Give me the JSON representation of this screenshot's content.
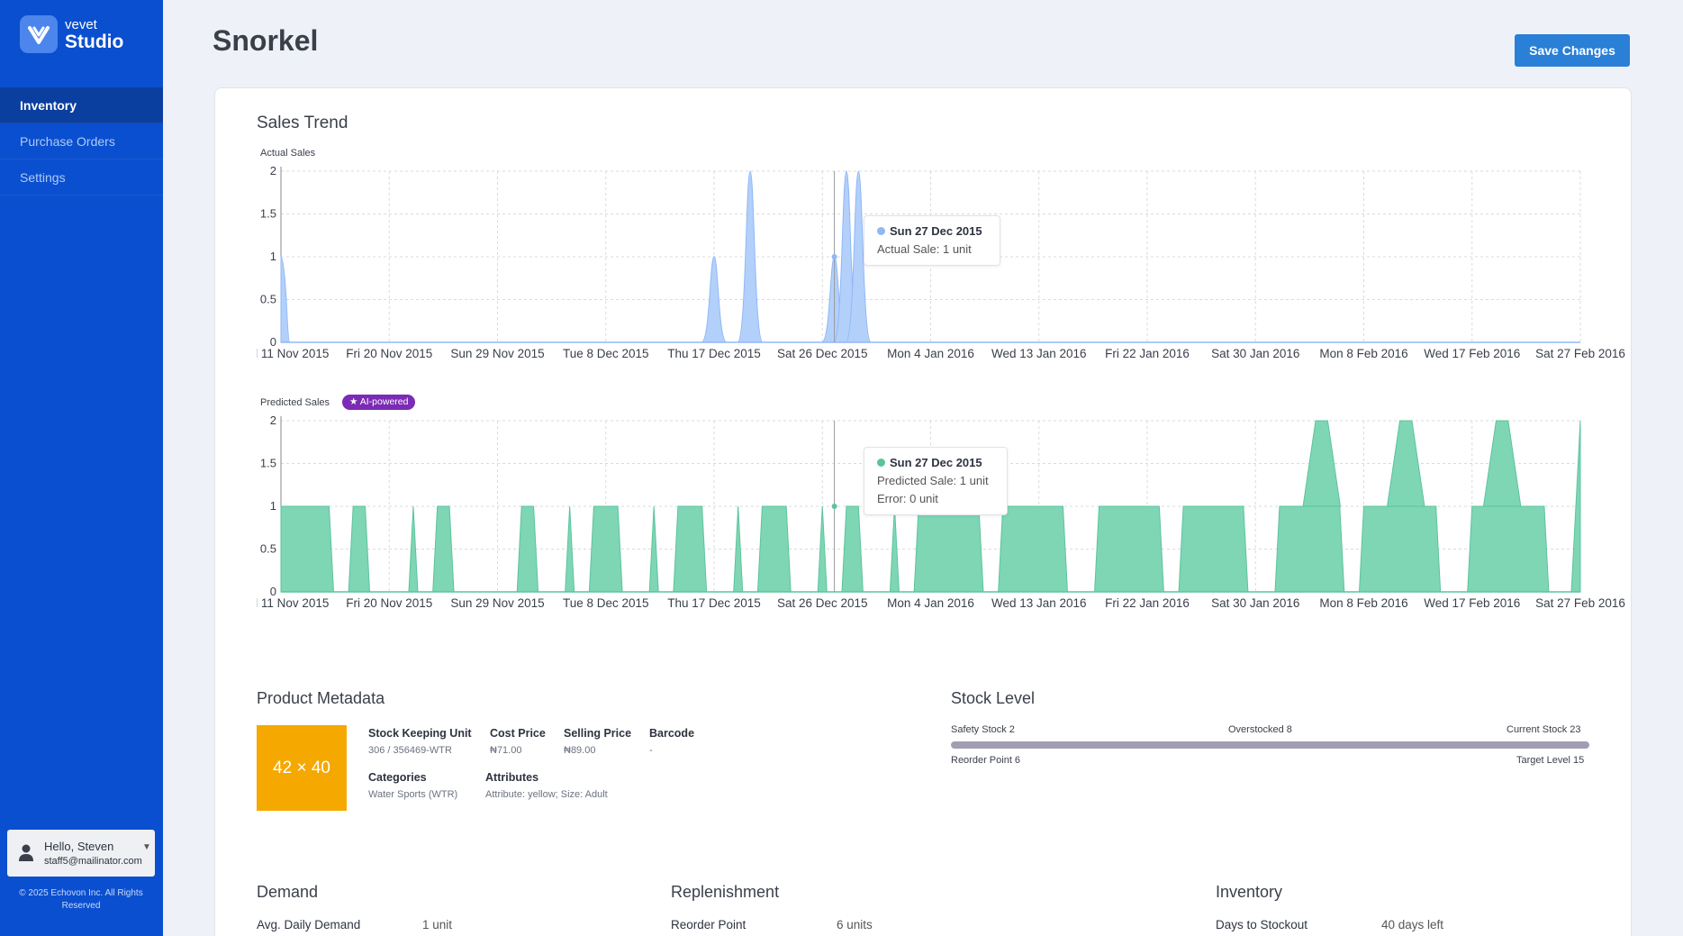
{
  "brand": {
    "name_small": "vevet",
    "name_big": "Studio"
  },
  "nav": [
    {
      "label": "Inventory",
      "active": true
    },
    {
      "label": "Purchase Orders",
      "active": false
    },
    {
      "label": "Settings",
      "active": false
    }
  ],
  "user": {
    "greeting": "Hello, Steven",
    "email": "staff5@mailinator.com"
  },
  "copyright": "© 2025 Echovon Inc. All Rights Reserved",
  "page": {
    "title": "Snorkel",
    "save_label": "Save Changes"
  },
  "sales_trend": {
    "title": "Sales Trend",
    "actual_label": "Actual Sales",
    "predicted_label": "Predicted Sales",
    "ai_badge": "AI-powered",
    "tooltip_actual": {
      "title": "Sun 27 Dec 2015",
      "line1": "Actual Sale: 1 unit"
    },
    "tooltip_predicted": {
      "title": "Sun 27 Dec 2015",
      "line1": "Predicted Sale: 1 unit",
      "line2": "Error: 0 unit"
    }
  },
  "chart_data": [
    {
      "type": "area",
      "title": "Actual Sales",
      "x_range": [
        "2015-11-11",
        "2016-02-27"
      ],
      "x_ticks": [
        "Wed 11 Nov 2015",
        "Fri 20 Nov 2015",
        "Sun 29 Nov 2015",
        "Tue 8 Dec 2015",
        "Thu 17 Dec 2015",
        "Sat 26 Dec 2015",
        "Mon 4 Jan 2016",
        "Wed 13 Jan 2016",
        "Fri 22 Jan 2016",
        "Sat 30 Jan 2016",
        "Mon 8 Feb 2016",
        "Wed 17 Feb 2016",
        "Sat 27 Feb 2016"
      ],
      "y_ticks": [
        "0",
        "0.5",
        "1",
        "1.5",
        "2"
      ],
      "ylim": [
        0,
        2
      ],
      "color": "#b3d0fb",
      "stroke": "#8fb8f5",
      "series": [
        {
          "points": [
            [
              "2015-11-11",
              1
            ],
            [
              "2015-12-17",
              1
            ],
            [
              "2015-12-20",
              2
            ],
            [
              "2015-12-27",
              1
            ],
            [
              "2015-12-28",
              2
            ],
            [
              "2015-12-29",
              2
            ]
          ]
        }
      ]
    },
    {
      "type": "area",
      "title": "Predicted Sales",
      "x_range": [
        "2015-11-11",
        "2016-02-27"
      ],
      "x_ticks": [
        "Wed 11 Nov 2015",
        "Fri 20 Nov 2015",
        "Sun 29 Nov 2015",
        "Tue 8 Dec 2015",
        "Thu 17 Dec 2015",
        "Sat 26 Dec 2015",
        "Mon 4 Jan 2016",
        "Wed 13 Jan 2016",
        "Fri 22 Jan 2016",
        "Sat 30 Jan 2016",
        "Mon 8 Feb 2016",
        "Wed 17 Feb 2016",
        "Sat 27 Feb 2016"
      ],
      "y_ticks": [
        "0",
        "0.5",
        "1",
        "1.5",
        "2"
      ],
      "ylim": [
        0,
        2
      ],
      "color": "#7ed6b5",
      "stroke": "#5cc49d",
      "series": [
        {
          "segments": [
            [
              "2015-11-11",
              "2015-11-15",
              1
            ],
            [
              "2015-11-17",
              "2015-11-18",
              1
            ],
            [
              "2015-11-22",
              "2015-11-22",
              1
            ],
            [
              "2015-11-24",
              "2015-11-25",
              1
            ],
            [
              "2015-12-01",
              "2015-12-02",
              1
            ],
            [
              "2015-12-05",
              "2015-12-05",
              1
            ],
            [
              "2015-12-07",
              "2015-12-09",
              1
            ],
            [
              "2015-12-12",
              "2015-12-12",
              1
            ],
            [
              "2015-12-14",
              "2015-12-16",
              1
            ],
            [
              "2015-12-19",
              "2015-12-19",
              1
            ],
            [
              "2015-12-21",
              "2015-12-23",
              1
            ],
            [
              "2015-12-26",
              "2015-12-26",
              1
            ],
            [
              "2015-12-28",
              "2015-12-29",
              1
            ],
            [
              "2016-01-01",
              "2016-01-01",
              1
            ],
            [
              "2016-01-03",
              "2016-01-08",
              1
            ],
            [
              "2016-01-10",
              "2016-01-15",
              1
            ],
            [
              "2016-01-18",
              "2016-01-23",
              1
            ],
            [
              "2016-01-25",
              "2016-01-30",
              1
            ],
            [
              "2016-02-02",
              "2016-02-07",
              1
            ],
            [
              "2016-02-09",
              "2016-02-15",
              1
            ],
            [
              "2016-02-18",
              "2016-02-24",
              1
            ],
            [
              "2016-02-27",
              "2016-02-27",
              2
            ]
          ],
          "peaks": [
            [
              "2016-02-05",
              "2016-02-06",
              2
            ],
            [
              "2016-02-12",
              "2016-02-13",
              2
            ],
            [
              "2016-02-20",
              "2016-02-21",
              2
            ]
          ]
        }
      ]
    }
  ],
  "product_metadata": {
    "title": "Product Metadata",
    "thumbnail": "42 × 40",
    "sku_label": "Stock Keeping Unit",
    "sku_value": "306 / 356469-WTR",
    "cost_label": "Cost Price",
    "cost_value": "₦71.00",
    "selling_label": "Selling Price",
    "selling_value": "₦89.00",
    "barcode_label": "Barcode",
    "barcode_value": "-",
    "categories_label": "Categories",
    "categories_value": "Water Sports (WTR)",
    "attributes_label": "Attributes",
    "attributes_value": "Attribute: yellow; Size: Adult"
  },
  "stock_level": {
    "title": "Stock Level",
    "safety": "Safety Stock 2",
    "overstocked": "Overstocked 8",
    "current": "Current Stock 23",
    "reorder": "Reorder Point 6",
    "target": "Target Level 15",
    "bar_color": "#a39db3"
  },
  "demand": {
    "title": "Demand",
    "avg_label": "Avg. Daily Demand",
    "avg_value": "1 unit"
  },
  "replenishment": {
    "title": "Replenishment",
    "reorder_label": "Reorder Point",
    "reorder_value": "6 units"
  },
  "inventory": {
    "title": "Inventory",
    "stockout_label": "Days to Stockout",
    "stockout_value": "40 days left"
  }
}
